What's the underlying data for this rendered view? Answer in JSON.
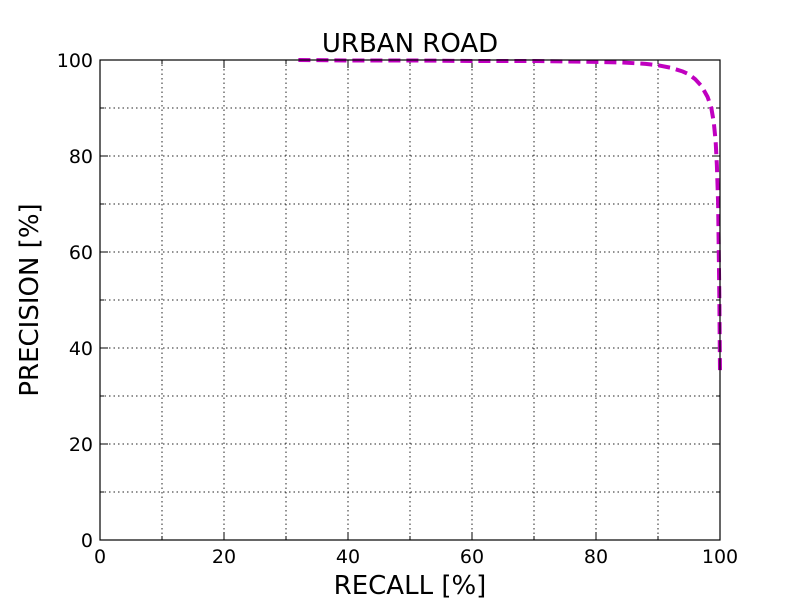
{
  "chart_data": {
    "type": "line",
    "title": "URBAN ROAD",
    "xlabel": "RECALL [%]",
    "ylabel": "PRECISION [%]",
    "xlim": [
      0,
      100
    ],
    "ylim": [
      0,
      100
    ],
    "x_ticks": [
      0,
      20,
      40,
      60,
      80,
      100
    ],
    "y_ticks": [
      0,
      20,
      40,
      60,
      80,
      100
    ],
    "x_minor_ticks": [
      10,
      30,
      50,
      70,
      90
    ],
    "y_minor_ticks": [
      10,
      30,
      50,
      70,
      90
    ],
    "grid": true,
    "series": [
      {
        "color": "#c000c0",
        "line_style": "dashed",
        "x": [
          32,
          40,
          50,
          60,
          70,
          80,
          84,
          88,
          90,
          92,
          94,
          95,
          96,
          97,
          98,
          98.6,
          99.0,
          99.3,
          99.5,
          99.7,
          99.8,
          99.9,
          99.95,
          100
        ],
        "y": [
          100,
          99.9,
          99.9,
          99.8,
          99.8,
          99.6,
          99.5,
          99.2,
          98.9,
          98.4,
          97.6,
          97.0,
          96.0,
          94.6,
          92.3,
          90.0,
          87.0,
          83.0,
          78.0,
          70.0,
          60.0,
          50.0,
          42.0,
          35.0
        ]
      }
    ]
  }
}
